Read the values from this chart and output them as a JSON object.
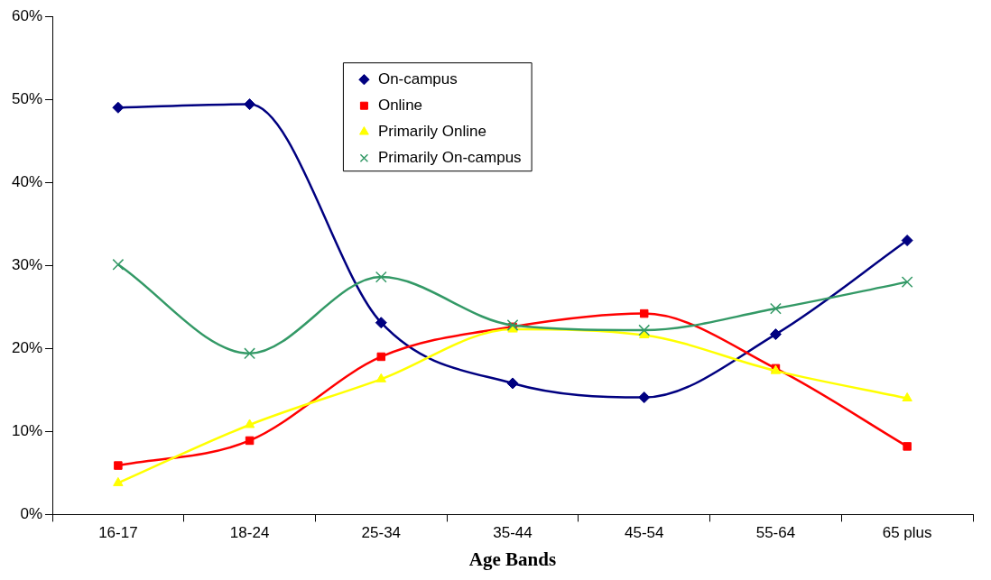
{
  "chart_data": {
    "type": "line",
    "xlabel": "Age Bands",
    "categories": [
      "16-17",
      "18-24",
      "25-34",
      "35-44",
      "45-54",
      "55-64",
      "65 plus"
    ],
    "series": [
      {
        "name": "On-campus",
        "color": "#000080",
        "marker": "diamond",
        "values": [
          49.0,
          49.4,
          23.1,
          15.8,
          14.1,
          21.7,
          33.0
        ]
      },
      {
        "name": "Online",
        "color": "#ff0000",
        "marker": "square",
        "values": [
          5.9,
          8.9,
          19.0,
          22.6,
          24.2,
          17.6,
          8.2
        ]
      },
      {
        "name": "Primarily Online",
        "color": "#ffff00",
        "marker": "triangle",
        "values": [
          3.8,
          10.8,
          16.3,
          22.3,
          21.6,
          17.3,
          14.0
        ]
      },
      {
        "name": "Primarily On-campus",
        "color": "#339966",
        "marker": "cross",
        "values": [
          30.1,
          19.4,
          28.6,
          22.8,
          22.2,
          24.8,
          28.0
        ]
      }
    ],
    "ylim": [
      0,
      60
    ],
    "yticks": [
      {
        "value": 0,
        "label": "0%"
      },
      {
        "value": 10,
        "label": "10%"
      },
      {
        "value": 20,
        "label": "20%"
      },
      {
        "value": 30,
        "label": "30%"
      },
      {
        "value": 40,
        "label": "40%"
      },
      {
        "value": 50,
        "label": "50%"
      },
      {
        "value": 60,
        "label": "60%"
      }
    ],
    "grid": false,
    "legend": "top",
    "line_style": "solid"
  }
}
